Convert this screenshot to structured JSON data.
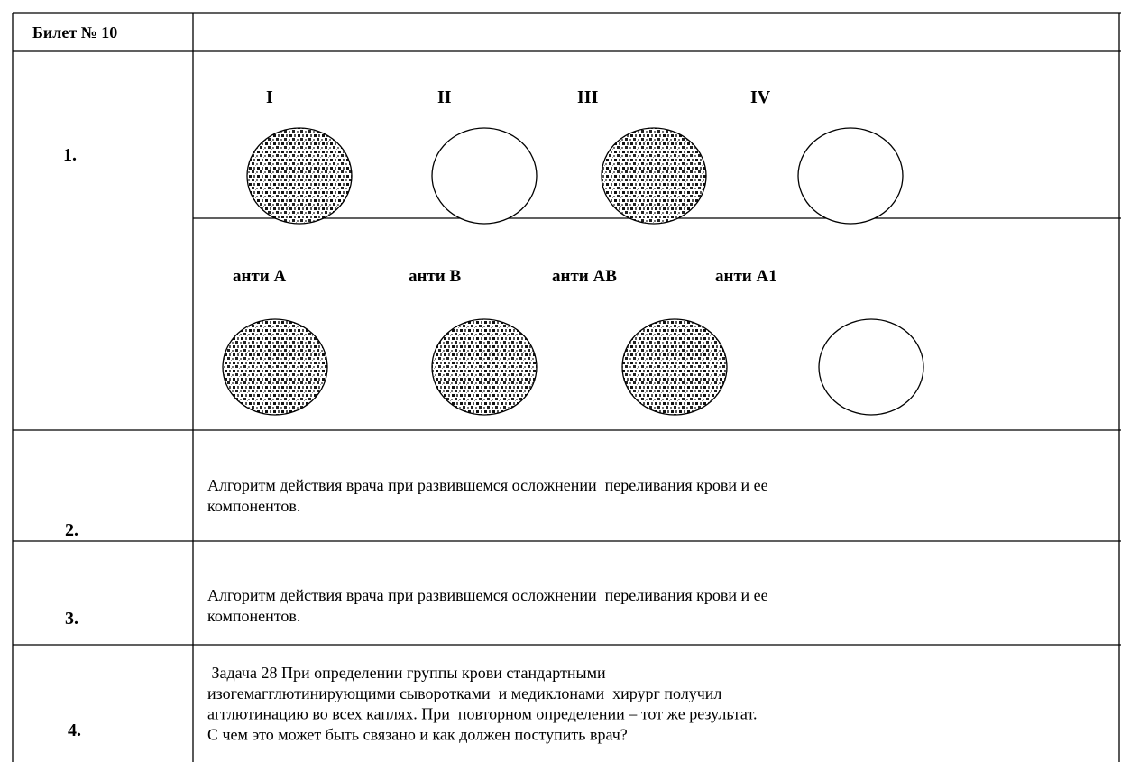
{
  "header": {
    "title": "Билет № 10"
  },
  "rows": [
    {
      "number": "1.",
      "top_groups": [
        {
          "label": "I",
          "agglutinated": true
        },
        {
          "label": "II",
          "agglutinated": false
        },
        {
          "label": "III",
          "agglutinated": true
        },
        {
          "label": "IV",
          "agglutinated": false
        }
      ],
      "bottom_reagents": [
        {
          "label": "анти А",
          "agglutinated": true
        },
        {
          "label": "анти В",
          "agglutinated": true
        },
        {
          "label": "анти АВ",
          "agglutinated": true
        },
        {
          "label": "анти А1",
          "agglutinated": false
        }
      ]
    },
    {
      "number": "2.",
      "lines": [
        "Алгоритм действия врача при развившемся осложнении  переливания крови и ее",
        "компонентов."
      ]
    },
    {
      "number": "3.",
      "lines": [
        "Алгоритм действия врача при развившемся осложнении  переливания крови и ее",
        "компонентов."
      ]
    },
    {
      "number": "4.",
      "lines": [
        " Задача 28 При определении группы крови стандартными",
        "изогемагглютинирующими сыворотками  и медиклонами  хирург получил",
        "агглютинацию во всех каплях. При  повторном определении – тот же результат.",
        "С чем это может быть связано и как должен поступить врач?"
      ]
    }
  ]
}
